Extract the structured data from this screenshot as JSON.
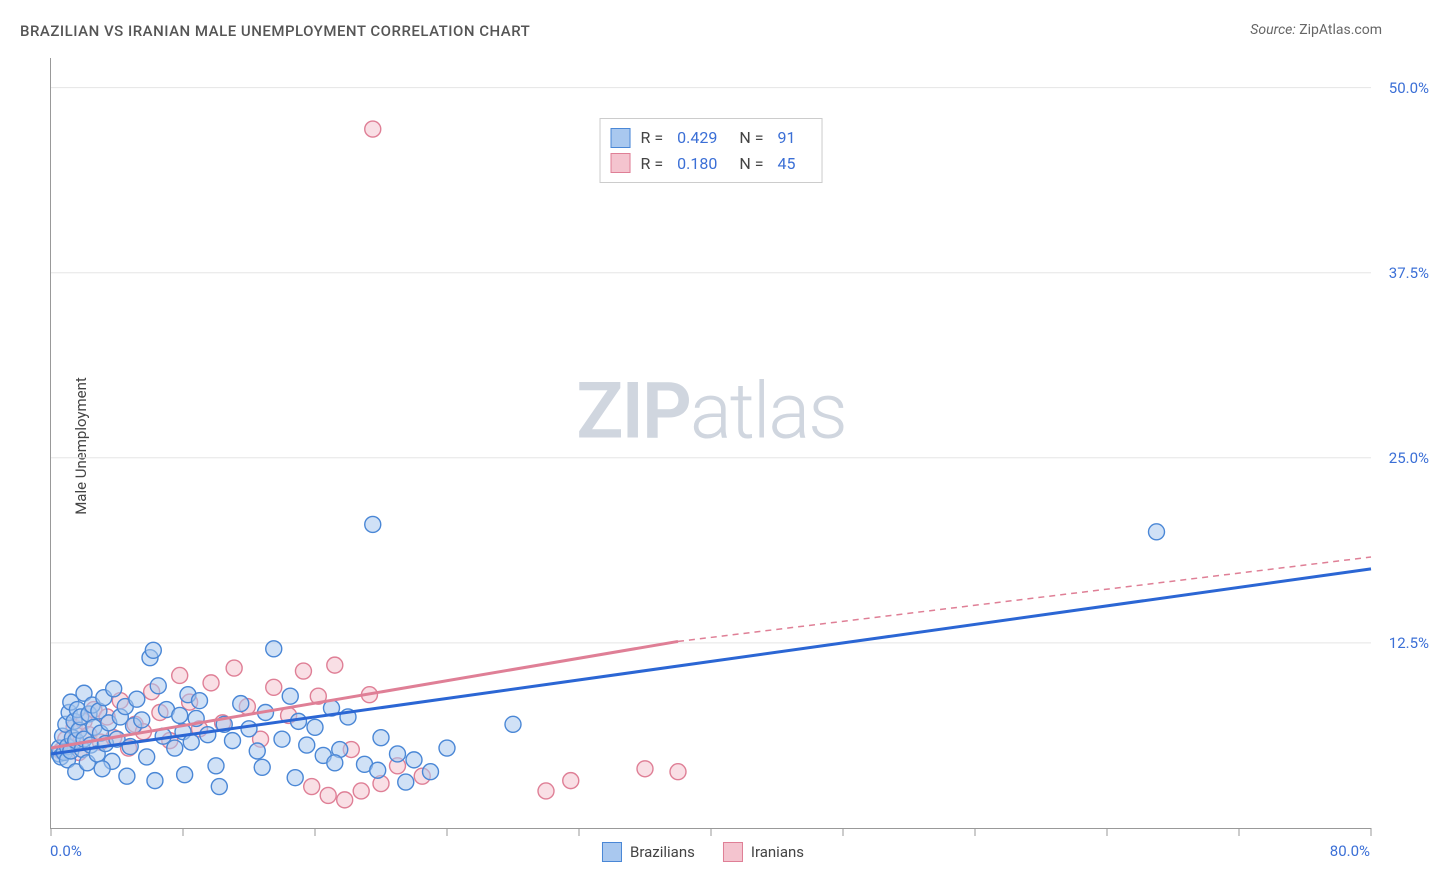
{
  "title": "BRAZILIAN VS IRANIAN MALE UNEMPLOYMENT CORRELATION CHART",
  "source_label": "Source:",
  "source_name": "ZipAtlas.com",
  "ylabel": "Male Unemployment",
  "watermark_bold": "ZIP",
  "watermark_light": "atlas",
  "chart": {
    "type": "scatter",
    "xlim": [
      0,
      80
    ],
    "ylim": [
      0,
      52
    ],
    "x_origin_label": "0.0%",
    "x_max_label": "80.0%",
    "yticks": [
      {
        "v": 12.5,
        "label": "12.5%"
      },
      {
        "v": 25.0,
        "label": "25.0%"
      },
      {
        "v": 37.5,
        "label": "37.5%"
      },
      {
        "v": 50.0,
        "label": "50.0%"
      }
    ],
    "xtick_values": [
      0,
      8,
      16,
      24,
      32,
      40,
      48,
      56,
      64,
      72,
      80
    ],
    "xtick_color": "#999999",
    "grid_color": "#e5e5e5",
    "axis_color": "#999999",
    "tick_label_color": "#3b6fd6",
    "background_color": "#ffffff",
    "marker_radius": 8,
    "marker_stroke_width": 1.4,
    "series": [
      {
        "name": "Brazilians",
        "fill_color": "#a9c8ef",
        "stroke_color": "#4a87d6",
        "fill_opacity": 0.55,
        "R": "0.429",
        "N": "91",
        "regression": {
          "x1": 0,
          "y1": 5.0,
          "x2": 80,
          "y2": 17.5,
          "color": "#2b66d4",
          "width": 3
        },
        "points": [
          [
            0.5,
            5.0
          ],
          [
            0.5,
            5.4
          ],
          [
            0.6,
            4.8
          ],
          [
            0.7,
            6.2
          ],
          [
            0.8,
            5.1
          ],
          [
            0.9,
            7.0
          ],
          [
            1.0,
            5.5
          ],
          [
            1.0,
            4.6
          ],
          [
            1.1,
            7.8
          ],
          [
            1.2,
            5.2
          ],
          [
            1.2,
            8.5
          ],
          [
            1.3,
            6.1
          ],
          [
            1.4,
            7.2
          ],
          [
            1.5,
            5.9
          ],
          [
            1.5,
            3.8
          ],
          [
            1.6,
            8.0
          ],
          [
            1.7,
            6.6
          ],
          [
            1.8,
            7.5
          ],
          [
            1.9,
            5.3
          ],
          [
            2.0,
            6.0
          ],
          [
            2.0,
            9.1
          ],
          [
            2.2,
            4.4
          ],
          [
            2.3,
            7.7
          ],
          [
            2.4,
            5.6
          ],
          [
            2.5,
            8.3
          ],
          [
            2.6,
            6.8
          ],
          [
            2.8,
            5.0
          ],
          [
            2.9,
            7.9
          ],
          [
            3.0,
            6.4
          ],
          [
            3.2,
            8.8
          ],
          [
            3.3,
            5.7
          ],
          [
            3.5,
            7.1
          ],
          [
            3.7,
            4.5
          ],
          [
            3.8,
            9.4
          ],
          [
            4.0,
            6.0
          ],
          [
            4.2,
            7.5
          ],
          [
            4.5,
            8.2
          ],
          [
            4.8,
            5.5
          ],
          [
            5.0,
            6.9
          ],
          [
            5.2,
            8.7
          ],
          [
            5.5,
            7.3
          ],
          [
            5.8,
            4.8
          ],
          [
            6.0,
            11.5
          ],
          [
            6.2,
            12.0
          ],
          [
            6.5,
            9.6
          ],
          [
            6.8,
            6.2
          ],
          [
            7.0,
            8.0
          ],
          [
            7.5,
            5.4
          ],
          [
            7.8,
            7.6
          ],
          [
            8.0,
            6.5
          ],
          [
            8.3,
            9.0
          ],
          [
            8.5,
            5.8
          ],
          [
            8.8,
            7.4
          ],
          [
            9.0,
            8.6
          ],
          [
            9.5,
            6.3
          ],
          [
            10.0,
            4.2
          ],
          [
            10.5,
            7.0
          ],
          [
            11.0,
            5.9
          ],
          [
            11.5,
            8.4
          ],
          [
            12.0,
            6.7
          ],
          [
            12.5,
            5.2
          ],
          [
            13.0,
            7.8
          ],
          [
            13.5,
            12.1
          ],
          [
            14.0,
            6.0
          ],
          [
            14.5,
            8.9
          ],
          [
            15.0,
            7.2
          ],
          [
            15.5,
            5.6
          ],
          [
            16.0,
            6.8
          ],
          [
            16.5,
            4.9
          ],
          [
            17.0,
            8.1
          ],
          [
            17.5,
            5.3
          ],
          [
            18.0,
            7.5
          ],
          [
            19.0,
            4.3
          ],
          [
            20.0,
            6.1
          ],
          [
            21.0,
            5.0
          ],
          [
            22.0,
            4.6
          ],
          [
            23.0,
            3.8
          ],
          [
            24.0,
            5.4
          ],
          [
            19.5,
            20.5
          ],
          [
            28.0,
            7.0
          ],
          [
            67.0,
            20.0
          ],
          [
            3.1,
            4.0
          ],
          [
            4.6,
            3.5
          ],
          [
            6.3,
            3.2
          ],
          [
            8.1,
            3.6
          ],
          [
            10.2,
            2.8
          ],
          [
            12.8,
            4.1
          ],
          [
            14.8,
            3.4
          ],
          [
            17.2,
            4.4
          ],
          [
            19.8,
            3.9
          ],
          [
            21.5,
            3.1
          ]
        ]
      },
      {
        "name": "Iranians",
        "fill_color": "#f4c4cf",
        "stroke_color": "#df7f96",
        "fill_opacity": 0.55,
        "R": "0.180",
        "N": "45",
        "regression_solid": {
          "x1": 0,
          "y1": 5.4,
          "x2": 38,
          "y2": 12.6,
          "color": "#df7f96",
          "width": 3
        },
        "regression_dashed": {
          "x1": 38,
          "y1": 12.6,
          "x2": 80,
          "y2": 18.3,
          "color": "#df7f96",
          "width": 1.5,
          "dash": "6,5"
        },
        "points": [
          [
            0.6,
            5.2
          ],
          [
            0.9,
            6.0
          ],
          [
            1.1,
            5.5
          ],
          [
            1.4,
            6.8
          ],
          [
            1.7,
            5.1
          ],
          [
            2.0,
            7.2
          ],
          [
            2.3,
            6.3
          ],
          [
            2.6,
            8.0
          ],
          [
            3.0,
            5.8
          ],
          [
            3.4,
            7.5
          ],
          [
            3.8,
            6.1
          ],
          [
            4.2,
            8.6
          ],
          [
            4.7,
            5.4
          ],
          [
            5.1,
            7.0
          ],
          [
            5.6,
            6.5
          ],
          [
            6.1,
            9.2
          ],
          [
            6.6,
            7.8
          ],
          [
            7.2,
            5.9
          ],
          [
            7.8,
            10.3
          ],
          [
            8.4,
            8.5
          ],
          [
            9.0,
            6.7
          ],
          [
            9.7,
            9.8
          ],
          [
            10.4,
            7.1
          ],
          [
            11.1,
            10.8
          ],
          [
            11.9,
            8.2
          ],
          [
            12.7,
            6.0
          ],
          [
            13.5,
            9.5
          ],
          [
            14.4,
            7.6
          ],
          [
            15.3,
            10.6
          ],
          [
            16.2,
            8.9
          ],
          [
            17.2,
            11.0
          ],
          [
            18.2,
            5.3
          ],
          [
            19.3,
            9.0
          ],
          [
            15.8,
            2.8
          ],
          [
            16.8,
            2.2
          ],
          [
            17.8,
            1.9
          ],
          [
            18.8,
            2.5
          ],
          [
            20.0,
            3.0
          ],
          [
            21.0,
            4.2
          ],
          [
            22.5,
            3.5
          ],
          [
            19.5,
            47.2
          ],
          [
            30.0,
            2.5
          ],
          [
            31.5,
            3.2
          ],
          [
            36.0,
            4.0
          ],
          [
            38.0,
            3.8
          ]
        ]
      }
    ],
    "bottom_legend": [
      {
        "label": "Brazilians",
        "fill": "#a9c8ef",
        "stroke": "#4a87d6"
      },
      {
        "label": "Iranians",
        "fill": "#f4c4cf",
        "stroke": "#df7f96"
      }
    ]
  }
}
